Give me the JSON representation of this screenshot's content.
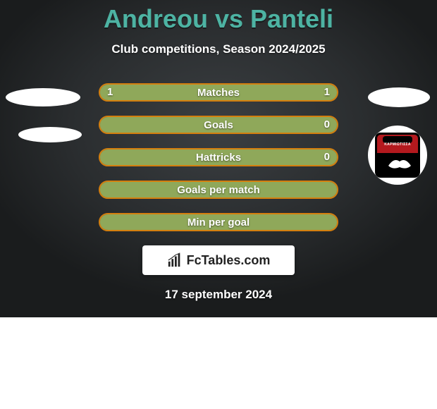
{
  "title_parts": {
    "a": "Andreou",
    "vs": "vs",
    "b": "Panteli"
  },
  "subtitle": "Club competitions, Season 2024/2025",
  "colors": {
    "title": "#4db3a3",
    "bar_border": "#d47f0e",
    "bar_fill": "#8fa85a",
    "bar_bg": "#55595b",
    "text": "#ffffff",
    "badge_red": "#b3191e"
  },
  "rows": [
    {
      "label": "Matches",
      "left": "1",
      "right": "1",
      "fill_left_pct": 50,
      "fill_right_pct": 50,
      "full": false
    },
    {
      "label": "Goals",
      "left": "",
      "right": "0",
      "fill_left_pct": 0,
      "fill_right_pct": 0,
      "full": true
    },
    {
      "label": "Hattricks",
      "left": "",
      "right": "0",
      "fill_left_pct": 0,
      "fill_right_pct": 0,
      "full": true
    },
    {
      "label": "Goals per match",
      "left": "",
      "right": "",
      "fill_left_pct": 0,
      "fill_right_pct": 0,
      "full": true
    },
    {
      "label": "Min per goal",
      "left": "",
      "right": "",
      "fill_left_pct": 0,
      "fill_right_pct": 0,
      "full": true
    }
  ],
  "watermark": "FcTables.com",
  "date": "17 september 2024",
  "badge_text": "ΚΑΡΜΙΩΤΙΣΣΑ"
}
